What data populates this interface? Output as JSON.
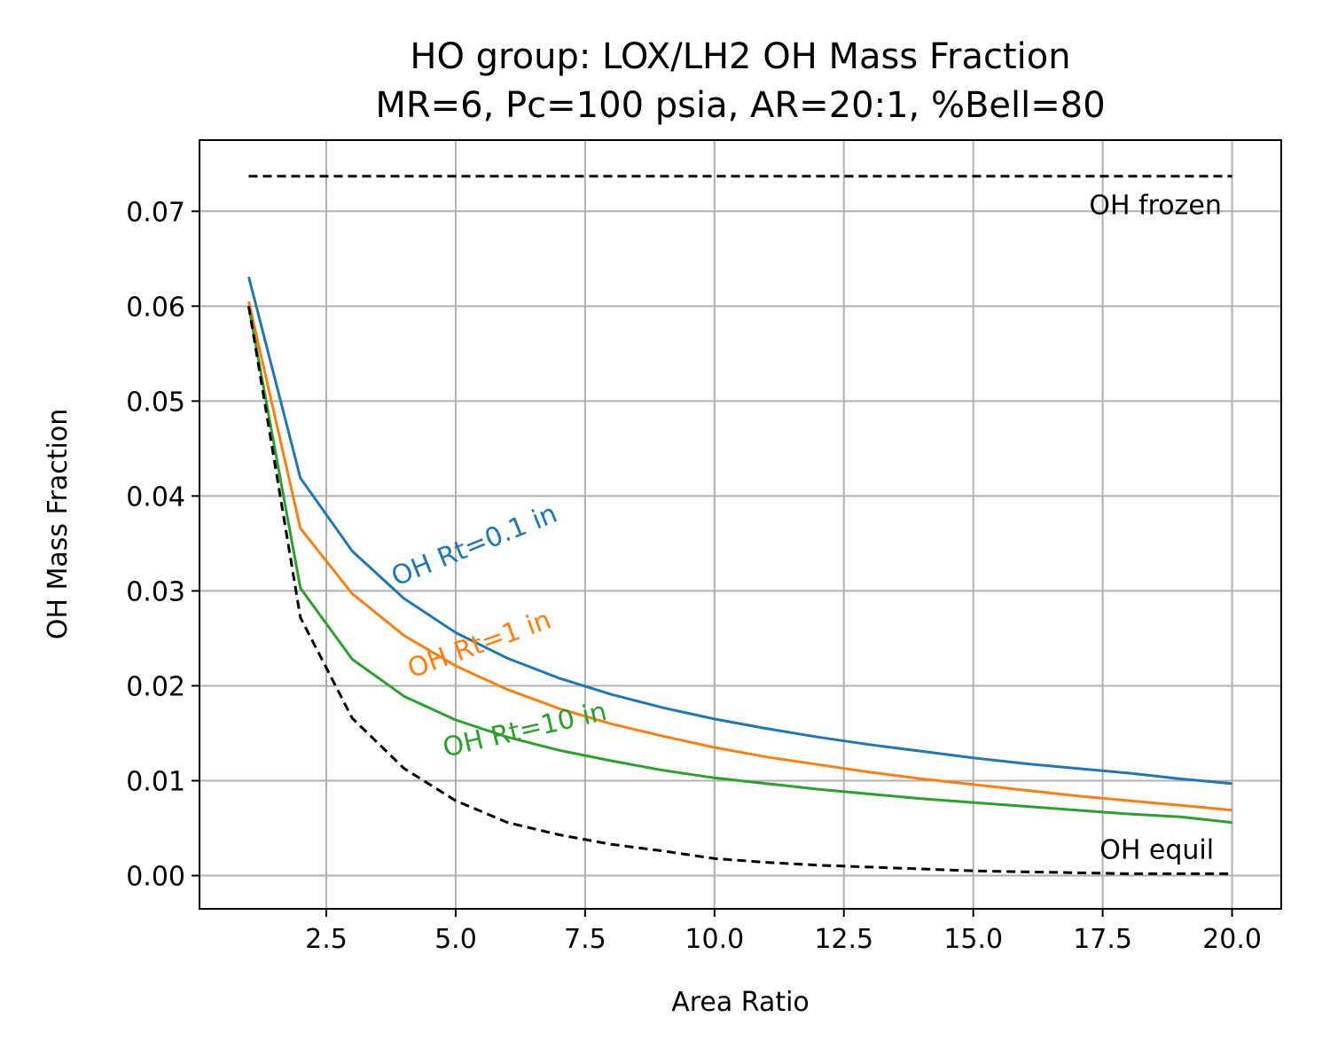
{
  "chart_data": {
    "type": "line",
    "title": "HO group: LOX/LH2 OH Mass Fraction",
    "subtitle": "MR=6, Pc=100 psia, AR=20:1, %Bell=80",
    "xlabel": "Area Ratio",
    "ylabel": "OH Mass Fraction",
    "xlim": [
      0.05,
      20.95
    ],
    "ylim": [
      -0.0035,
      0.0775
    ],
    "x_ticks": [
      2.5,
      5.0,
      7.5,
      10.0,
      12.5,
      15.0,
      17.5,
      20.0
    ],
    "x_tick_labels": [
      "2.5",
      "5.0",
      "7.5",
      "10.0",
      "12.5",
      "15.0",
      "17.5",
      "20.0"
    ],
    "y_ticks": [
      0.0,
      0.01,
      0.02,
      0.03,
      0.04,
      0.05,
      0.06,
      0.07
    ],
    "y_tick_labels": [
      "0.00",
      "0.01",
      "0.02",
      "0.03",
      "0.04",
      "0.05",
      "0.06",
      "0.07"
    ],
    "grid": true,
    "x": [
      1,
      2,
      3,
      4,
      5,
      6,
      7,
      8,
      9,
      10,
      11,
      12,
      13,
      14,
      15,
      16,
      17,
      18,
      19,
      20
    ],
    "series": [
      {
        "label": "OH Rt=0.1 in",
        "color": "#1f77b4",
        "dashed": false,
        "values": [
          0.0631,
          0.0419,
          0.0342,
          0.0292,
          0.0256,
          0.0229,
          0.0208,
          0.0191,
          0.0177,
          0.0165,
          0.0155,
          0.0146,
          0.0138,
          0.0131,
          0.0124,
          0.0118,
          0.0113,
          0.0108,
          0.0102,
          0.0097
        ],
        "label_pos": {
          "x": 3.85,
          "y": 0.0305,
          "angle_deg": -22
        }
      },
      {
        "label": "OH Rt=1 in",
        "color": "#ff7f0e",
        "dashed": false,
        "values": [
          0.0605,
          0.0366,
          0.0297,
          0.0253,
          0.0221,
          0.0196,
          0.0176,
          0.016,
          0.0147,
          0.0135,
          0.0125,
          0.0117,
          0.0109,
          0.0102,
          0.0096,
          0.009,
          0.0084,
          0.0079,
          0.0074,
          0.0069
        ],
        "label_pos": {
          "x": 4.15,
          "y": 0.0208,
          "angle_deg": -20
        }
      },
      {
        "label": "OH Rt=10 in",
        "color": "#2ca02c",
        "dashed": false,
        "values": [
          0.06,
          0.0303,
          0.0228,
          0.0189,
          0.0164,
          0.0146,
          0.0132,
          0.0121,
          0.0111,
          0.0103,
          0.0097,
          0.0091,
          0.0086,
          0.0081,
          0.0077,
          0.0073,
          0.0069,
          0.0065,
          0.0062,
          0.0056
        ],
        "label_pos": {
          "x": 4.8,
          "y": 0.0125,
          "angle_deg": -13
        }
      },
      {
        "label": "OH frozen",
        "color": "#000000",
        "dashed": true,
        "values": [
          0.0737,
          0.0737,
          0.0737,
          0.0737,
          0.0737,
          0.0737,
          0.0737,
          0.0737,
          0.0737,
          0.0737,
          0.0737,
          0.0737,
          0.0737,
          0.0737,
          0.0737,
          0.0737,
          0.0737,
          0.0737,
          0.0737,
          0.0737
        ],
        "label_pos": {
          "x": 19.8,
          "y": 0.0697,
          "anchor": "end"
        }
      },
      {
        "label": "OH equil",
        "color": "#000000",
        "dashed": true,
        "values": [
          0.06,
          0.0272,
          0.0166,
          0.0113,
          0.0079,
          0.0056,
          0.0043,
          0.0033,
          0.0026,
          0.0018,
          0.0014,
          0.0011,
          0.0009,
          0.0007,
          0.0005,
          0.0004,
          0.0003,
          0.0002,
          0.0002,
          0.0002
        ],
        "label_pos": {
          "x": 19.65,
          "y": 0.0018,
          "anchor": "end"
        }
      }
    ]
  }
}
